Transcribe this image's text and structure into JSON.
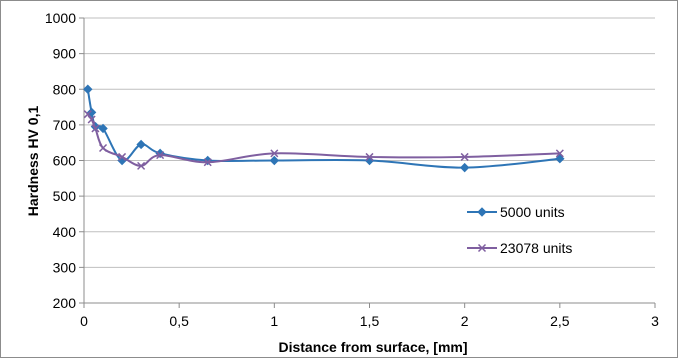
{
  "chart_data": {
    "type": "line",
    "title": "",
    "xlabel": "Distance from surface, [mm]",
    "ylabel": "Hardness HV 0,1",
    "xlim": [
      0,
      3
    ],
    "ylim": [
      200,
      1000
    ],
    "x_ticks": [
      "0",
      "0,5",
      "1",
      "1,5",
      "2",
      "2,5",
      "3"
    ],
    "x_tick_values": [
      0,
      0.5,
      1,
      1.5,
      2,
      2.5,
      3
    ],
    "y_ticks": [
      "200",
      "300",
      "400",
      "500",
      "600",
      "700",
      "800",
      "900",
      "1000"
    ],
    "y_tick_values": [
      200,
      300,
      400,
      500,
      600,
      700,
      800,
      900,
      1000
    ],
    "grid": "horizontal",
    "legend_position": "right",
    "series": [
      {
        "name": "5000 units",
        "color": "#2E75B6",
        "marker": "diamond",
        "x": [
          0.02,
          0.04,
          0.06,
          0.1,
          0.2,
          0.3,
          0.4,
          0.65,
          1.0,
          1.5,
          2.0,
          2.5
        ],
        "y": [
          800,
          735,
          695,
          690,
          600,
          645,
          620,
          600,
          600,
          600,
          580,
          605
        ]
      },
      {
        "name": "23078 units",
        "color": "#7F5FA0",
        "marker": "x",
        "x": [
          0.02,
          0.04,
          0.06,
          0.1,
          0.2,
          0.3,
          0.4,
          0.65,
          1.0,
          1.5,
          2.0,
          2.5
        ],
        "y": [
          730,
          715,
          690,
          635,
          610,
          585,
          615,
          595,
          620,
          610,
          610,
          620
        ]
      }
    ]
  }
}
